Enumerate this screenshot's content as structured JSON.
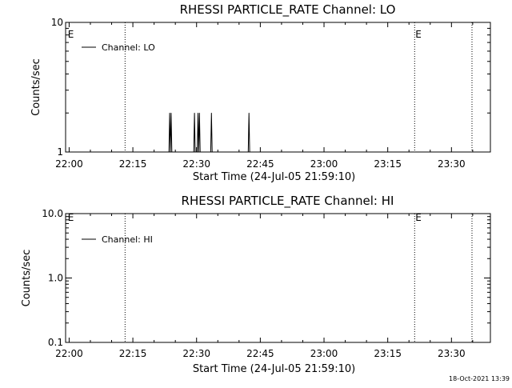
{
  "chart_data": [
    {
      "type": "line",
      "title": "RHESSI PARTICLE_RATE Channel: LO",
      "xlabel": "Start Time (24-Jul-05 21:59:10)",
      "ylabel": "Counts/sec",
      "y_scale": "log",
      "ylim": [
        1,
        10
      ],
      "y_ticks": [
        1,
        10
      ],
      "y_tick_labels": [
        "1",
        "10"
      ],
      "xlim": [
        "21:59:10",
        "23:39:10"
      ],
      "x_ticks": [
        "22:00",
        "22:15",
        "22:30",
        "22:45",
        "23:00",
        "23:15",
        "23:30"
      ],
      "grid": false,
      "legend_position": "top-left",
      "series": [
        {
          "name": "Channel: LO",
          "x": [
            "22:23:30",
            "22:23:40",
            "22:23:50",
            "22:24:00",
            "22:24:10",
            "22:29:20",
            "22:29:30",
            "22:29:40",
            "22:30:10",
            "22:30:20",
            "22:30:30",
            "22:30:40",
            "22:30:50",
            "22:31:00",
            "22:33:20",
            "22:33:30",
            "22:33:40",
            "22:33:50",
            "22:42:10",
            "22:42:20",
            "22:42:30",
            "22:42:40"
          ],
          "values": [
            1,
            2,
            1,
            2,
            1,
            1,
            2,
            1,
            1,
            2,
            1,
            2,
            1,
            1,
            1,
            2,
            1,
            1,
            1,
            2,
            1,
            1
          ]
        }
      ],
      "markers": [
        {
          "time": "21:59:30",
          "label": "E",
          "style": "none"
        },
        {
          "time": "22:13:10",
          "label": "",
          "style": "dotted"
        },
        {
          "time": "23:21:20",
          "label": "E",
          "style": "dotted"
        },
        {
          "time": "23:34:50",
          "label": "",
          "style": "dotted"
        }
      ]
    },
    {
      "type": "line",
      "title": "RHESSI PARTICLE_RATE Channel: HI",
      "xlabel": "Start Time (24-Jul-05 21:59:10)",
      "ylabel": "Counts/sec",
      "y_scale": "log",
      "ylim": [
        0.1,
        10
      ],
      "y_ticks": [
        0.1,
        1,
        10
      ],
      "y_tick_labels": [
        "0.1",
        "1.0",
        "10.0"
      ],
      "xlim": [
        "21:59:10",
        "23:39:10"
      ],
      "x_ticks": [
        "22:00",
        "22:15",
        "22:30",
        "22:45",
        "23:00",
        "23:15",
        "23:30"
      ],
      "grid": false,
      "legend_position": "top-left",
      "series": [
        {
          "name": "Channel: HI",
          "x": [],
          "values": []
        }
      ],
      "markers": [
        {
          "time": "21:59:30",
          "label": "E",
          "style": "none"
        },
        {
          "time": "22:13:10",
          "label": "",
          "style": "dotted"
        },
        {
          "time": "23:21:20",
          "label": "E",
          "style": "dotted"
        },
        {
          "time": "23:34:50",
          "label": "",
          "style": "dotted"
        }
      ]
    }
  ],
  "footer": {
    "timestamp": "18-Oct-2021 13:39"
  }
}
